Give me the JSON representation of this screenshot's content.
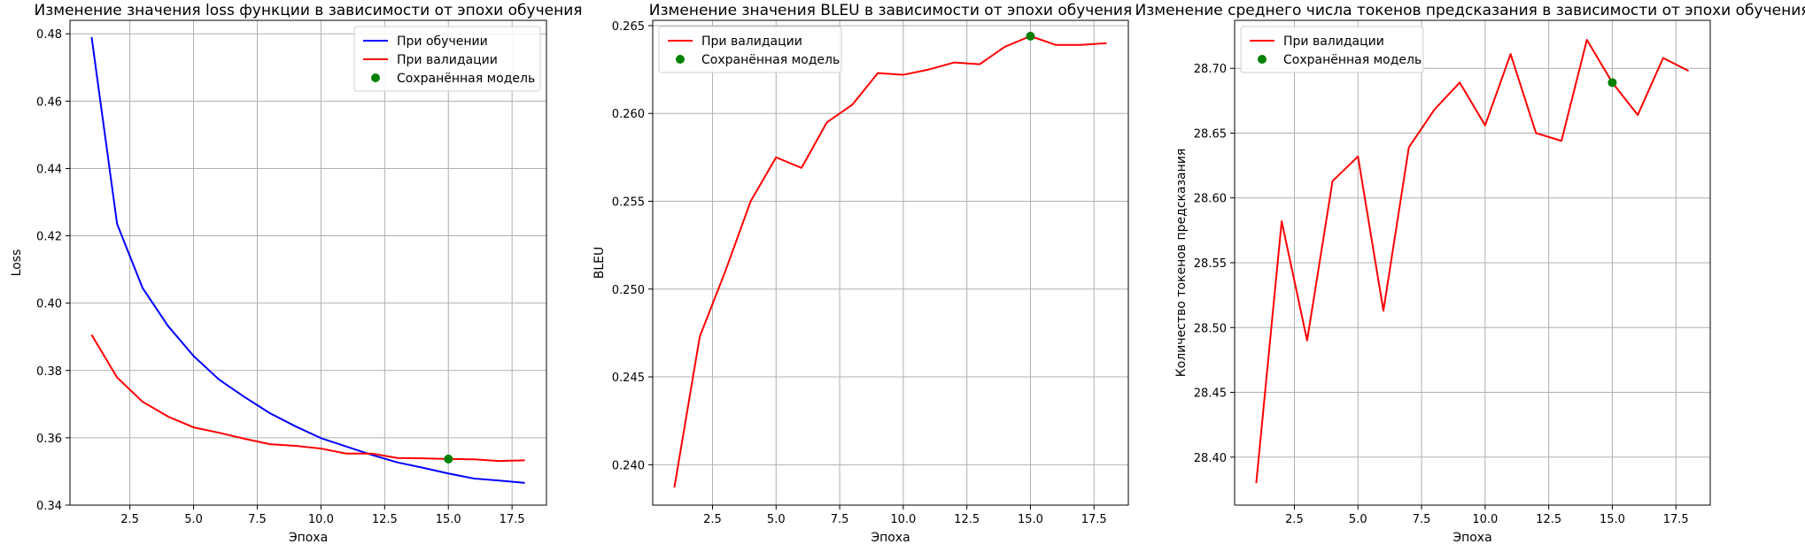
{
  "figure": {
    "background": "#ffffff"
  },
  "chart_data": [
    {
      "type": "line",
      "title": "Изменение значения loss функции в зависимости от эпохи обучения",
      "xlabel": "Эпоха",
      "ylabel": "Loss",
      "xlim": [
        0.15,
        18.85
      ],
      "ylim": [
        0.34,
        0.484
      ],
      "xticks": [
        2.5,
        5.0,
        7.5,
        10.0,
        12.5,
        15.0,
        17.5
      ],
      "xtick_labels": [
        "2.5",
        "5.0",
        "7.5",
        "10.0",
        "12.5",
        "15.0",
        "17.5"
      ],
      "yticks": [
        0.34,
        0.36,
        0.38,
        0.4,
        0.42,
        0.44,
        0.46,
        0.48
      ],
      "ytick_labels": [
        "0.34",
        "0.36",
        "0.38",
        "0.40",
        "0.42",
        "0.44",
        "0.46",
        "0.48"
      ],
      "grid": true,
      "legend_position": "top-right",
      "series": [
        {
          "name": "При обучении",
          "kind": "line",
          "color": "#0000ff",
          "x": [
            1,
            2,
            3,
            4,
            5,
            6,
            7,
            8,
            9,
            10,
            11,
            12,
            13,
            14,
            15,
            16,
            17,
            18
          ],
          "y": [
            0.479,
            0.4235,
            0.4045,
            0.3932,
            0.3843,
            0.3773,
            0.3721,
            0.3673,
            0.3634,
            0.3599,
            0.3574,
            0.3549,
            0.3527,
            0.3511,
            0.3494,
            0.3479,
            0.3473,
            0.3466
          ]
        },
        {
          "name": "При валидации",
          "kind": "line",
          "color": "#ff0000",
          "x": [
            1,
            2,
            3,
            4,
            5,
            6,
            7,
            8,
            9,
            10,
            11,
            12,
            13,
            14,
            15,
            16,
            17,
            18
          ],
          "y": [
            0.3906,
            0.3779,
            0.3707,
            0.3663,
            0.3631,
            0.3615,
            0.3597,
            0.3581,
            0.3576,
            0.3568,
            0.3553,
            0.3553,
            0.354,
            0.3539,
            0.3537,
            0.3536,
            0.3531,
            0.3533
          ]
        },
        {
          "name": "Сохранённая модель",
          "kind": "marker",
          "color": "#008000",
          "x": [
            15
          ],
          "y": [
            0.3537
          ]
        }
      ]
    },
    {
      "type": "line",
      "title": "Изменение значения BLEU в зависимости от эпохи обучения",
      "xlabel": "Эпоха",
      "ylabel": "BLEU",
      "xlim": [
        0.15,
        18.85
      ],
      "ylim": [
        0.2377,
        0.2653
      ],
      "xticks": [
        2.5,
        5.0,
        7.5,
        10.0,
        12.5,
        15.0,
        17.5
      ],
      "xtick_labels": [
        "2.5",
        "5.0",
        "7.5",
        "10.0",
        "12.5",
        "15.0",
        "17.5"
      ],
      "yticks": [
        0.24,
        0.245,
        0.25,
        0.255,
        0.26,
        0.265
      ],
      "ytick_labels": [
        "0.240",
        "0.245",
        "0.250",
        "0.255",
        "0.260",
        "0.265"
      ],
      "grid": true,
      "legend_position": "top-left",
      "series": [
        {
          "name": "При валидации",
          "kind": "line",
          "color": "#ff0000",
          "x": [
            1,
            2,
            3,
            4,
            5,
            6,
            7,
            8,
            9,
            10,
            11,
            12,
            13,
            14,
            15,
            16,
            17,
            18
          ],
          "y": [
            0.2387,
            0.2473,
            0.251,
            0.255,
            0.2575,
            0.2569,
            0.2595,
            0.2605,
            0.2623,
            0.2622,
            0.2625,
            0.2629,
            0.2628,
            0.2638,
            0.2644,
            0.2639,
            0.2639,
            0.264
          ]
        },
        {
          "name": "Сохранённая модель",
          "kind": "marker",
          "color": "#008000",
          "x": [
            15
          ],
          "y": [
            0.2644
          ]
        }
      ]
    },
    {
      "type": "line",
      "title": "Изменение среднего числа токенов предсказания в зависимости от эпохи обучения",
      "xlabel": "Эпоха",
      "ylabel": "Количество токенов предсказания",
      "xlim": [
        0.15,
        18.85
      ],
      "ylim": [
        28.363,
        28.737
      ],
      "xticks": [
        2.5,
        5.0,
        7.5,
        10.0,
        12.5,
        15.0,
        17.5
      ],
      "xtick_labels": [
        "2.5",
        "5.0",
        "7.5",
        "10.0",
        "12.5",
        "15.0",
        "17.5"
      ],
      "yticks": [
        28.4,
        28.45,
        28.5,
        28.55,
        28.6,
        28.65,
        28.7
      ],
      "ytick_labels": [
        "28.40",
        "28.45",
        "28.50",
        "28.55",
        "28.60",
        "28.65",
        "28.70"
      ],
      "grid": true,
      "legend_position": "top-left",
      "series": [
        {
          "name": "При валидации",
          "kind": "line",
          "color": "#ff0000",
          "x": [
            1,
            2,
            3,
            4,
            5,
            6,
            7,
            8,
            9,
            10,
            11,
            12,
            13,
            14,
            15,
            16,
            17,
            18
          ],
          "y": [
            28.38,
            28.582,
            28.49,
            28.613,
            28.632,
            28.513,
            28.639,
            28.668,
            28.689,
            28.656,
            28.711,
            28.65,
            28.644,
            28.722,
            28.689,
            28.664,
            28.708,
            28.698
          ]
        },
        {
          "name": "Сохранённая модель",
          "kind": "marker",
          "color": "#008000",
          "x": [
            15
          ],
          "y": [
            28.689
          ]
        }
      ]
    }
  ]
}
